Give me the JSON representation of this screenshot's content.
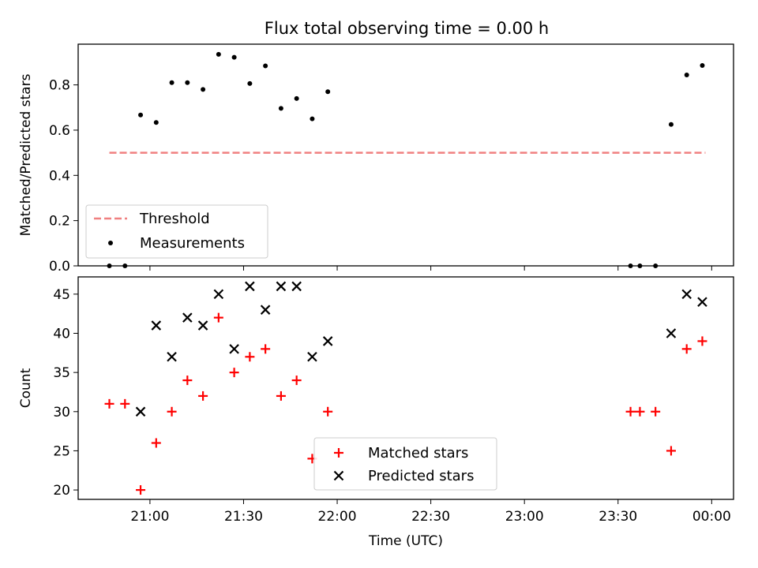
{
  "figure": {
    "title": "Flux total observing time = 0.00 h"
  },
  "chart_data": [
    {
      "type": "scatter",
      "title": "Flux total observing time = 0.00 h",
      "xlabel": "",
      "ylabel": "Matched/Predicted stars",
      "xlim": [
        "20:37",
        "00:07"
      ],
      "ylim": [
        0,
        0.98
      ],
      "yticks": [
        0.0,
        0.2,
        0.4,
        0.6,
        0.8
      ],
      "yticklabels": [
        "0.0",
        "0.2",
        "0.4",
        "0.6",
        "0.8"
      ],
      "legend": {
        "position": "lower-left",
        "entries": [
          "Threshold",
          "Measurements"
        ]
      },
      "series": [
        {
          "name": "Threshold",
          "kind": "line",
          "style": "dashed",
          "color": "#f08080",
          "x": [
            "20:47",
            "23:58"
          ],
          "y": [
            0.5,
            0.5
          ]
        },
        {
          "name": "Measurements",
          "kind": "scatter",
          "marker": "dot",
          "color": "#000000",
          "x": [
            "20:47",
            "20:52",
            "20:57",
            "21:02",
            "21:07",
            "21:12",
            "21:17",
            "21:22",
            "21:27",
            "21:32",
            "21:37",
            "21:42",
            "21:47",
            "21:52",
            "21:57",
            "23:34",
            "23:37",
            "23:42",
            "23:47",
            "23:52",
            "23:57"
          ],
          "y": [
            0.0,
            0.0,
            0.667,
            0.634,
            0.81,
            0.81,
            0.78,
            0.935,
            0.922,
            0.806,
            0.884,
            0.696,
            0.74,
            0.65,
            0.77,
            0.0,
            0.0,
            0.0,
            0.625,
            0.844,
            0.886
          ]
        }
      ]
    },
    {
      "type": "scatter",
      "xlabel": "Time (UTC)",
      "ylabel": "Count",
      "xlim": [
        "20:37",
        "00:07"
      ],
      "ylim": [
        18.8,
        47.2
      ],
      "xticks": [
        "21:00",
        "21:30",
        "22:00",
        "22:30",
        "23:00",
        "23:30",
        "00:00"
      ],
      "yticks": [
        20,
        25,
        30,
        35,
        40,
        45
      ],
      "legend": {
        "position": "lower-center",
        "entries": [
          "Matched stars",
          "Predicted stars"
        ]
      },
      "series": [
        {
          "name": "Matched stars",
          "marker": "plus",
          "color": "#ff0000",
          "x": [
            "20:47",
            "20:52",
            "20:57",
            "21:02",
            "21:07",
            "21:12",
            "21:17",
            "21:22",
            "21:27",
            "21:32",
            "21:37",
            "21:42",
            "21:47",
            "21:52",
            "21:57",
            "23:34",
            "23:37",
            "23:42",
            "23:47",
            "23:52",
            "23:57"
          ],
          "y": [
            31,
            31,
            20,
            26,
            30,
            34,
            32,
            42,
            35,
            37,
            38,
            32,
            34,
            24,
            30,
            30,
            30,
            30,
            25,
            38,
            39
          ]
        },
        {
          "name": "Predicted stars",
          "marker": "x",
          "color": "#000000",
          "x": [
            "20:57",
            "21:02",
            "21:07",
            "21:12",
            "21:17",
            "21:22",
            "21:27",
            "21:32",
            "21:37",
            "21:42",
            "21:47",
            "21:52",
            "21:57",
            "23:47",
            "23:52",
            "23:57"
          ],
          "y": [
            30,
            41,
            37,
            42,
            41,
            45,
            38,
            46,
            43,
            46,
            46,
            37,
            39,
            40,
            45,
            44
          ]
        }
      ]
    }
  ]
}
